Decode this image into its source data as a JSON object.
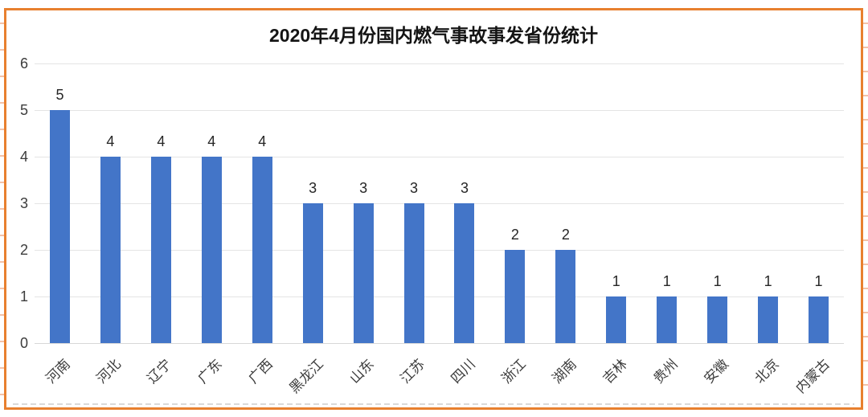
{
  "frame": {
    "border_color": "#E8802F",
    "tick_color": "rgba(233,143,96,0.55)"
  },
  "chart_data": {
    "type": "bar",
    "title": "2020年4月份国内燃气事故事发省份统计",
    "categories": [
      "河南",
      "河北",
      "辽宁",
      "广东",
      "广西",
      "黑龙江",
      "山东",
      "江苏",
      "四川",
      "浙江",
      "湖南",
      "吉林",
      "贵州",
      "安徽",
      "北京",
      "内蒙古"
    ],
    "values": [
      5,
      4,
      4,
      4,
      4,
      3,
      3,
      3,
      3,
      2,
      2,
      1,
      1,
      1,
      1,
      1
    ],
    "data_labels": true,
    "xlabel": "",
    "ylabel": "",
    "ylim": [
      0,
      6
    ],
    "yticks": [
      0,
      1,
      2,
      3,
      4,
      5,
      6
    ],
    "grid": true,
    "legend": false,
    "bar_color": "#4375C8",
    "gridline_color": "#E4E4E4",
    "axis_label_color": "#3c3c3c",
    "value_label_color": "#262626",
    "title_color": "#141414"
  }
}
